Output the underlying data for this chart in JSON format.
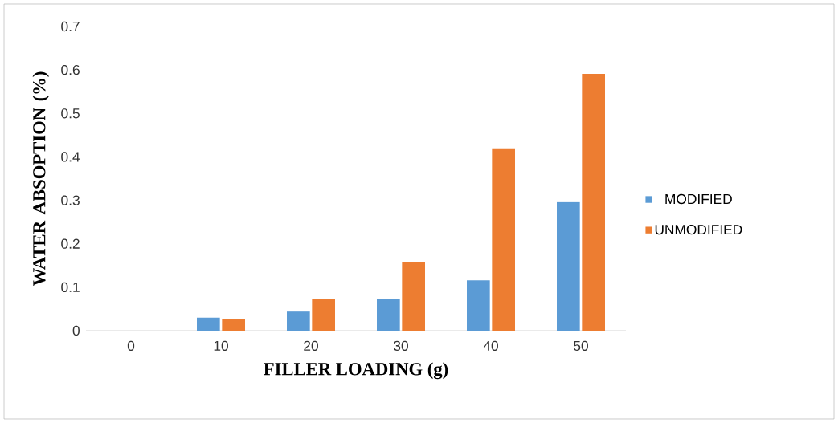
{
  "chart_data": {
    "type": "bar",
    "xlabel": "FILLER LOADING (g)",
    "ylabel": "WATER ABSOPTION (%)",
    "categories": [
      "0",
      "10",
      "20",
      "30",
      "40",
      "50"
    ],
    "series": [
      {
        "name": "MODIFIED",
        "color": "#5b9bd5",
        "values": [
          0,
          0.03,
          0.044,
          0.072,
          0.116,
          0.296
        ]
      },
      {
        "name": "UNMODIFIED",
        "color": "#ed7d31",
        "values": [
          0,
          0.026,
          0.072,
          0.159,
          0.418,
          0.591
        ]
      }
    ],
    "ylim": [
      0,
      0.7
    ],
    "yticks": [
      0,
      0.1,
      0.2,
      0.3,
      0.4,
      0.5,
      0.6,
      0.7
    ],
    "legend": "right"
  }
}
